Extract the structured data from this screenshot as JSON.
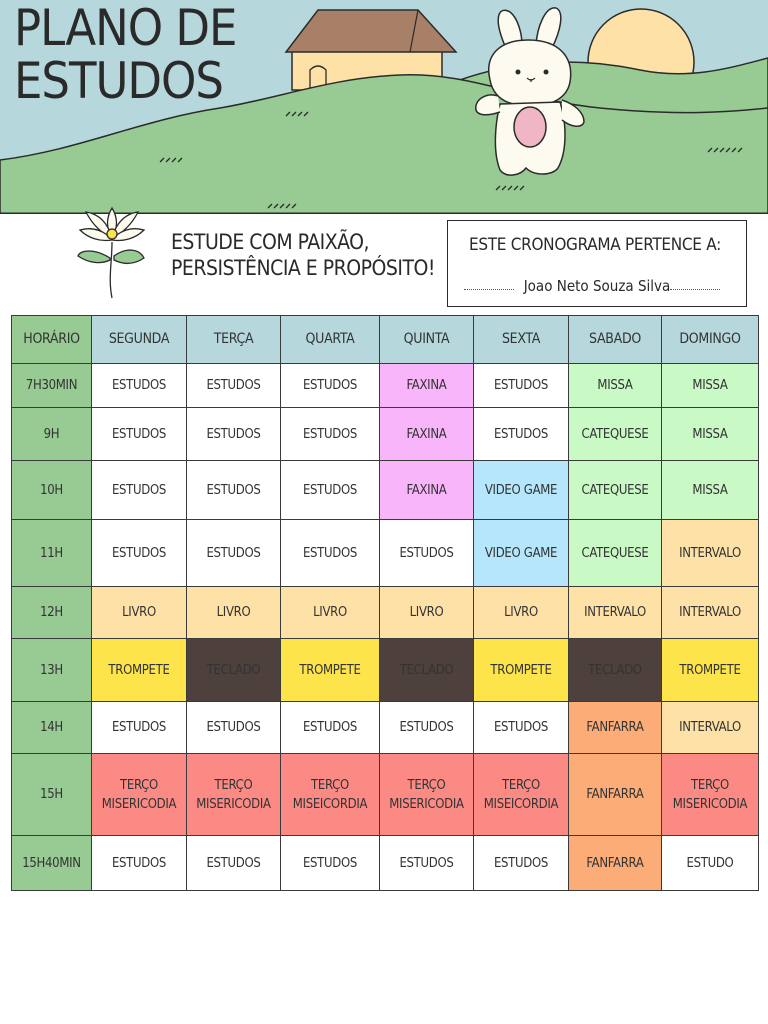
{
  "header": {
    "title_line1": "PLANO DE",
    "title_line2": "ESTUDOS"
  },
  "motto": {
    "line1": "ESTUDE COM PAIXÃO,",
    "line2": "PERSISTÊNCIA E PROPÓSITO!"
  },
  "owner": {
    "label": "ESTE CRONOGRAMA PERTENCE A:",
    "name": "Joao Neto Souza Silva"
  },
  "colors": {
    "sky": "#b6d8dc",
    "grass": "#97cb93",
    "faxina": "#f8b5fa",
    "missa": "#c9f9c4",
    "video_game": "#b5e6fb",
    "livro": "#fde1a7",
    "trompete": "#fde44a",
    "teclado": "#4e403d",
    "terco": "#fc8a84",
    "fanfarra": "#fcad77",
    "estudos": "#ffffff"
  },
  "schedule": {
    "header_corner": "HORÁRIO",
    "days": [
      "SEGUNDA",
      "TERÇA",
      "QUARTA",
      "QUINTA",
      "SEXTA",
      "SABADO",
      "DOMINGO"
    ],
    "rows": [
      {
        "hour": "7H30MIN",
        "cells": [
          {
            "text": "ESTUDOS",
            "bg": "#ffffff"
          },
          {
            "text": "ESTUDOS",
            "bg": "#ffffff"
          },
          {
            "text": "ESTUDOS",
            "bg": "#ffffff"
          },
          {
            "text": "FAXINA",
            "bg": "#f8b5fa"
          },
          {
            "text": "ESTUDOS",
            "bg": "#ffffff"
          },
          {
            "text": "MISSA",
            "bg": "#c9f9c4"
          },
          {
            "text": "MISSA",
            "bg": "#c9f9c4"
          }
        ]
      },
      {
        "hour": "9H",
        "cells": [
          {
            "text": "ESTUDOS",
            "bg": "#ffffff"
          },
          {
            "text": "ESTUDOS",
            "bg": "#ffffff"
          },
          {
            "text": "ESTUDOS",
            "bg": "#ffffff"
          },
          {
            "text": "FAXINA",
            "bg": "#f8b5fa"
          },
          {
            "text": "ESTUDOS",
            "bg": "#ffffff"
          },
          {
            "text": "CATEQUESE",
            "bg": "#c9f9c4"
          },
          {
            "text": "MISSA",
            "bg": "#c9f9c4"
          }
        ]
      },
      {
        "hour": "10H",
        "cells": [
          {
            "text": "ESTUDOS",
            "bg": "#ffffff"
          },
          {
            "text": "ESTUDOS",
            "bg": "#ffffff"
          },
          {
            "text": "ESTUDOS",
            "bg": "#ffffff"
          },
          {
            "text": "FAXINA",
            "bg": "#f8b5fa"
          },
          {
            "text": "VIDEO GAME",
            "bg": "#b5e6fb"
          },
          {
            "text": "CATEQUESE",
            "bg": "#c9f9c4"
          },
          {
            "text": "MISSA",
            "bg": "#c9f9c4"
          }
        ]
      },
      {
        "hour": "11H",
        "cells": [
          {
            "text": "ESTUDOS",
            "bg": "#ffffff"
          },
          {
            "text": "ESTUDOS",
            "bg": "#ffffff"
          },
          {
            "text": "ESTUDOS",
            "bg": "#ffffff"
          },
          {
            "text": "ESTUDOS",
            "bg": "#ffffff"
          },
          {
            "text": "VIDEO GAME",
            "bg": "#b5e6fb"
          },
          {
            "text": "CATEQUESE",
            "bg": "#c9f9c4"
          },
          {
            "text": "INTERVALO",
            "bg": "#fde1a7"
          }
        ]
      },
      {
        "hour": "12H",
        "cells": [
          {
            "text": "LIVRO",
            "bg": "#fde1a7"
          },
          {
            "text": "LIVRO",
            "bg": "#fde1a7"
          },
          {
            "text": "LIVRO",
            "bg": "#fde1a7"
          },
          {
            "text": "LIVRO",
            "bg": "#fde1a7"
          },
          {
            "text": "LIVRO",
            "bg": "#fde1a7"
          },
          {
            "text": "INTERVALO",
            "bg": "#fde1a7"
          },
          {
            "text": "INTERVALO",
            "bg": "#fde1a7"
          }
        ]
      },
      {
        "hour": "13H",
        "cells": [
          {
            "text": "TROMPETE",
            "bg": "#fde44a"
          },
          {
            "text": "TECLADO",
            "bg": "#4e403d",
            "light": true
          },
          {
            "text": "TROMPETE",
            "bg": "#fde44a"
          },
          {
            "text": "TECLADO",
            "bg": "#4e403d",
            "light": true
          },
          {
            "text": "TROMPETE",
            "bg": "#fde44a"
          },
          {
            "text": "TECLADO",
            "bg": "#4e403d",
            "light": true
          },
          {
            "text": "TROMPETE",
            "bg": "#fde44a"
          }
        ]
      },
      {
        "hour": "14H",
        "cells": [
          {
            "text": "ESTUDOS",
            "bg": "#ffffff"
          },
          {
            "text": "ESTUDOS",
            "bg": "#ffffff"
          },
          {
            "text": "ESTUDOS",
            "bg": "#ffffff"
          },
          {
            "text": "ESTUDOS",
            "bg": "#ffffff"
          },
          {
            "text": "ESTUDOS",
            "bg": "#ffffff"
          },
          {
            "text": "FANFARRA",
            "bg": "#fcad77"
          },
          {
            "text": "INTERVALO",
            "bg": "#fde1a7"
          }
        ]
      },
      {
        "hour": "15H",
        "cells": [
          {
            "text": "TERÇO\nMISERICODIA",
            "bg": "#fc8a84"
          },
          {
            "text": "TERÇO\nMISERICODIA",
            "bg": "#fc8a84"
          },
          {
            "text": "TERÇO\nMISEICORDIA",
            "bg": "#fc8a84"
          },
          {
            "text": "TERÇO\nMISERICODIA",
            "bg": "#fc8a84"
          },
          {
            "text": "TERÇO\nMISEICORDIA",
            "bg": "#fc8a84"
          },
          {
            "text": "FANFARRA",
            "bg": "#fcad77"
          },
          {
            "text": "TERÇO\nMISERICODIA",
            "bg": "#fc8a84"
          }
        ]
      },
      {
        "hour": "15H40MIN",
        "cells": [
          {
            "text": "ESTUDOS",
            "bg": "#ffffff"
          },
          {
            "text": "ESTUDOS",
            "bg": "#ffffff"
          },
          {
            "text": "ESTUDOS",
            "bg": "#ffffff"
          },
          {
            "text": "ESTUDOS",
            "bg": "#ffffff"
          },
          {
            "text": "ESTUDOS",
            "bg": "#ffffff"
          },
          {
            "text": "FANFARRA",
            "bg": "#fcad77"
          },
          {
            "text": "ESTUDO",
            "bg": "#ffffff"
          }
        ]
      }
    ]
  }
}
